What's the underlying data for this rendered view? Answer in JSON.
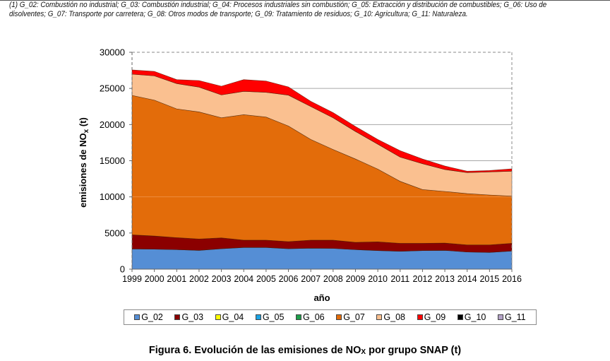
{
  "footnote": "(1) G_02: Combustión no industrial; G_03: Combustión industrial; G_04: Procesos industriales sin combustión; G_05: Extracción y distribución de combustibles; G_06: Uso de disolventes; G_07: Transporte por carretera; G_08: Otros modos de transporte; G_09: Tratamiento de residuos; G_10: Agricultura; G_11: Naturaleza.",
  "caption": {
    "prefix": "Figura 6. Evolución de las emisiones de NO",
    "subscript": "X",
    "suffix": " por grupo SNAP (t)"
  },
  "chart_data": {
    "type": "area",
    "stacked": true,
    "title": "",
    "xlabel": "año",
    "ylabel": "emisiones de NOx (t)",
    "ylim": [
      0,
      30000
    ],
    "yticks": [
      0,
      5000,
      10000,
      15000,
      20000,
      25000,
      30000
    ],
    "grid": true,
    "legend_position": "bottom",
    "categories": [
      "1999",
      "2000",
      "2001",
      "2002",
      "2003",
      "2004",
      "2005",
      "2006",
      "2007",
      "2008",
      "2009",
      "2010",
      "2011",
      "2012",
      "2013",
      "2014",
      "2015",
      "2016"
    ],
    "series": [
      {
        "name": "G_02",
        "color": "#558ED5",
        "values": [
          2800,
          2770,
          2700,
          2600,
          2830,
          3000,
          3000,
          2830,
          2900,
          2870,
          2700,
          2570,
          2470,
          2570,
          2600,
          2370,
          2310,
          2510
        ]
      },
      {
        "name": "G_03",
        "color": "#8B0000",
        "values": [
          1950,
          1820,
          1660,
          1570,
          1500,
          1010,
          1010,
          980,
          1110,
          1140,
          1010,
          1210,
          1110,
          1010,
          1010,
          980,
          1040,
          1070
        ]
      },
      {
        "name": "G_04",
        "color": "#FFFF00",
        "values": [
          0,
          0,
          0,
          0,
          0,
          0,
          0,
          0,
          0,
          0,
          0,
          0,
          0,
          0,
          0,
          0,
          0,
          0
        ]
      },
      {
        "name": "G_05",
        "color": "#1CA3E3",
        "values": [
          0,
          0,
          0,
          0,
          0,
          0,
          0,
          0,
          0,
          0,
          0,
          0,
          0,
          0,
          0,
          0,
          0,
          0
        ]
      },
      {
        "name": "G_06",
        "color": "#1E9E4A",
        "values": [
          0,
          0,
          0,
          0,
          0,
          0,
          0,
          0,
          0,
          0,
          0,
          0,
          0,
          0,
          0,
          0,
          0,
          0
        ]
      },
      {
        "name": "G_07",
        "color": "#E36C0A",
        "values": [
          19290,
          18790,
          17810,
          17580,
          16610,
          17360,
          17030,
          15990,
          13930,
          12540,
          11530,
          10060,
          8570,
          7430,
          7140,
          7100,
          6910,
          6520
        ]
      },
      {
        "name": "G_08",
        "color": "#FAC090",
        "values": [
          2930,
          3360,
          3500,
          3430,
          3160,
          3220,
          3420,
          4270,
          4560,
          4390,
          3810,
          3450,
          3350,
          3580,
          3030,
          2910,
          3190,
          3450
        ]
      },
      {
        "name": "G_09",
        "color": "#FF0000",
        "values": [
          590,
          620,
          550,
          910,
          1210,
          1630,
          1560,
          1140,
          720,
          720,
          690,
          650,
          890,
          650,
          490,
          190,
          200,
          330
        ]
      },
      {
        "name": "G_10",
        "color": "#000000",
        "values": [
          0,
          0,
          0,
          0,
          0,
          0,
          0,
          0,
          0,
          0,
          0,
          0,
          0,
          0,
          0,
          0,
          0,
          0
        ]
      },
      {
        "name": "G_11",
        "color": "#B3A2C7",
        "values": [
          0,
          0,
          0,
          0,
          0,
          0,
          0,
          0,
          0,
          0,
          0,
          0,
          0,
          0,
          0,
          0,
          0,
          0
        ]
      }
    ]
  }
}
